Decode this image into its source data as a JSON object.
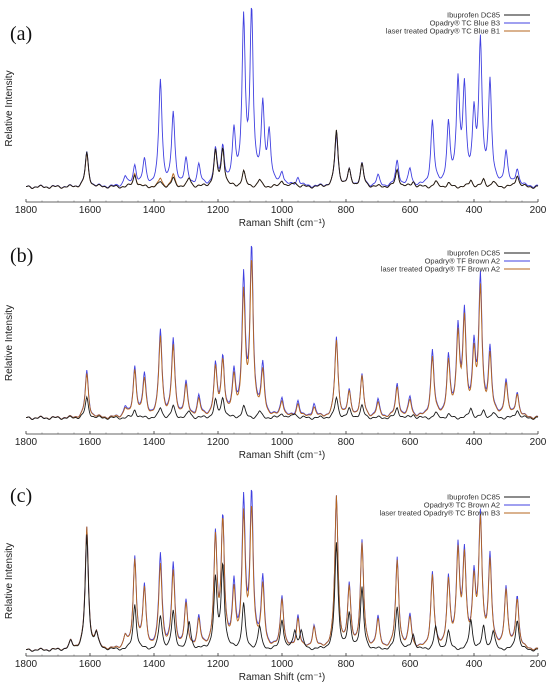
{
  "chart_data": [
    {
      "type": "line",
      "panel_label": "(a)",
      "xlabel": "Raman Shift (cm⁻¹)",
      "ylabel": "Relative Intensity",
      "xlim": [
        1800,
        200
      ],
      "x_reversed": true,
      "x_ticks": [
        "1800",
        "1600",
        "1400",
        "1200",
        "1000",
        "800",
        "600",
        "400",
        "200"
      ],
      "legend_position": "top-right",
      "colors": [
        "#1a1a1a",
        "#4040e0",
        "#b5651d"
      ],
      "series": [
        {
          "name": "Ibuprofen DC85",
          "peaks": [
            [
              1610,
              0.2
            ],
            [
              1460,
              0.07
            ],
            [
              1380,
              0.03
            ],
            [
              1340,
              0.05
            ],
            [
              1290,
              0.05
            ],
            [
              1208,
              0.2
            ],
            [
              1185,
              0.22
            ],
            [
              1120,
              0.09
            ],
            [
              1070,
              0.04
            ],
            [
              1000,
              0.04
            ],
            [
              960,
              0.03
            ],
            [
              830,
              0.33
            ],
            [
              790,
              0.09
            ],
            [
              750,
              0.13
            ],
            [
              640,
              0.1
            ],
            [
              590,
              0.03
            ],
            [
              520,
              0.03
            ],
            [
              480,
              0.02
            ],
            [
              410,
              0.04
            ],
            [
              370,
              0.04
            ],
            [
              340,
              0.03
            ],
            [
              265,
              0.07
            ]
          ]
        },
        {
          "name": "Opadry® TC Blue B3",
          "peaks": [
            [
              1610,
              0.2
            ],
            [
              1490,
              0.06
            ],
            [
              1460,
              0.12
            ],
            [
              1430,
              0.15
            ],
            [
              1380,
              0.62
            ],
            [
              1340,
              0.42
            ],
            [
              1300,
              0.15
            ],
            [
              1260,
              0.12
            ],
            [
              1208,
              0.2
            ],
            [
              1185,
              0.22
            ],
            [
              1150,
              0.3
            ],
            [
              1120,
              0.95
            ],
            [
              1095,
              1.0
            ],
            [
              1060,
              0.45
            ],
            [
              1040,
              0.3
            ],
            [
              1000,
              0.08
            ],
            [
              950,
              0.05
            ],
            [
              830,
              0.3
            ],
            [
              790,
              0.09
            ],
            [
              750,
              0.13
            ],
            [
              700,
              0.06
            ],
            [
              640,
              0.15
            ],
            [
              600,
              0.1
            ],
            [
              530,
              0.38
            ],
            [
              480,
              0.35
            ],
            [
              450,
              0.6
            ],
            [
              430,
              0.55
            ],
            [
              400,
              0.4
            ],
            [
              380,
              0.82
            ],
            [
              350,
              0.6
            ],
            [
              300,
              0.2
            ],
            [
              265,
              0.1
            ]
          ]
        },
        {
          "name": "laser treated Opadry® TC Blue B1",
          "peaks": [
            [
              1610,
              0.19
            ],
            [
              1460,
              0.08
            ],
            [
              1380,
              0.05
            ],
            [
              1340,
              0.07
            ],
            [
              1290,
              0.05
            ],
            [
              1208,
              0.2
            ],
            [
              1185,
              0.22
            ],
            [
              1120,
              0.09
            ],
            [
              1070,
              0.04
            ],
            [
              1000,
              0.04
            ],
            [
              960,
              0.03
            ],
            [
              830,
              0.33
            ],
            [
              790,
              0.09
            ],
            [
              750,
              0.13
            ],
            [
              640,
              0.1
            ],
            [
              590,
              0.03
            ],
            [
              520,
              0.03
            ],
            [
              480,
              0.02
            ],
            [
              410,
              0.04
            ],
            [
              370,
              0.04
            ],
            [
              340,
              0.03
            ],
            [
              265,
              0.07
            ]
          ]
        }
      ]
    },
    {
      "type": "line",
      "panel_label": "(b)",
      "xlabel": "Raman Shift (cm⁻¹)",
      "ylabel": "Relative Intensity",
      "xlim": [
        1800,
        200
      ],
      "x_reversed": true,
      "x_ticks": [
        "1800",
        "1600",
        "1400",
        "1200",
        "1000",
        "800",
        "600",
        "400",
        "200"
      ],
      "legend_position": "top-right",
      "colors": [
        "#1a1a1a",
        "#4040e0",
        "#b5651d"
      ],
      "series": [
        {
          "name": "Ibuprofen DC85",
          "peaks": [
            [
              1610,
              0.12
            ],
            [
              1460,
              0.05
            ],
            [
              1380,
              0.06
            ],
            [
              1340,
              0.07
            ],
            [
              1290,
              0.04
            ],
            [
              1208,
              0.1
            ],
            [
              1185,
              0.12
            ],
            [
              1120,
              0.07
            ],
            [
              1070,
              0.04
            ],
            [
              1000,
              0.03
            ],
            [
              960,
              0.03
            ],
            [
              830,
              0.12
            ],
            [
              790,
              0.05
            ],
            [
              750,
              0.07
            ],
            [
              640,
              0.06
            ],
            [
              590,
              0.02
            ],
            [
              520,
              0.03
            ],
            [
              480,
              0.02
            ],
            [
              410,
              0.06
            ],
            [
              370,
              0.04
            ],
            [
              340,
              0.03
            ],
            [
              265,
              0.05
            ]
          ]
        },
        {
          "name": "Opadry® TF Brown A2",
          "peaks": [
            [
              1610,
              0.28
            ],
            [
              1490,
              0.06
            ],
            [
              1460,
              0.3
            ],
            [
              1430,
              0.25
            ],
            [
              1380,
              0.52
            ],
            [
              1340,
              0.46
            ],
            [
              1300,
              0.2
            ],
            [
              1260,
              0.12
            ],
            [
              1208,
              0.3
            ],
            [
              1185,
              0.35
            ],
            [
              1150,
              0.25
            ],
            [
              1120,
              0.82
            ],
            [
              1095,
              1.0
            ],
            [
              1060,
              0.3
            ],
            [
              1000,
              0.12
            ],
            [
              950,
              0.1
            ],
            [
              900,
              0.08
            ],
            [
              830,
              0.48
            ],
            [
              790,
              0.15
            ],
            [
              750,
              0.25
            ],
            [
              700,
              0.1
            ],
            [
              640,
              0.2
            ],
            [
              600,
              0.12
            ],
            [
              530,
              0.4
            ],
            [
              480,
              0.35
            ],
            [
              450,
              0.52
            ],
            [
              430,
              0.6
            ],
            [
              400,
              0.4
            ],
            [
              380,
              0.82
            ],
            [
              350,
              0.4
            ],
            [
              300,
              0.22
            ],
            [
              265,
              0.15
            ]
          ]
        },
        {
          "name": "laser treated Opadry® TF Brown A2",
          "peaks": [
            [
              1610,
              0.26
            ],
            [
              1490,
              0.05
            ],
            [
              1460,
              0.28
            ],
            [
              1430,
              0.22
            ],
            [
              1380,
              0.48
            ],
            [
              1340,
              0.42
            ],
            [
              1300,
              0.18
            ],
            [
              1260,
              0.1
            ],
            [
              1208,
              0.28
            ],
            [
              1185,
              0.33
            ],
            [
              1150,
              0.22
            ],
            [
              1120,
              0.72
            ],
            [
              1095,
              0.92
            ],
            [
              1060,
              0.26
            ],
            [
              1000,
              0.1
            ],
            [
              950,
              0.08
            ],
            [
              900,
              0.06
            ],
            [
              830,
              0.46
            ],
            [
              790,
              0.14
            ],
            [
              750,
              0.24
            ],
            [
              700,
              0.08
            ],
            [
              640,
              0.18
            ],
            [
              600,
              0.1
            ],
            [
              530,
              0.36
            ],
            [
              480,
              0.32
            ],
            [
              450,
              0.48
            ],
            [
              430,
              0.56
            ],
            [
              400,
              0.36
            ],
            [
              380,
              0.75
            ],
            [
              350,
              0.36
            ],
            [
              300,
              0.2
            ],
            [
              265,
              0.14
            ]
          ]
        }
      ]
    },
    {
      "type": "line",
      "panel_label": "(c)",
      "xlabel": "Raman Shift (cm⁻¹)",
      "ylabel": "Relative Intensity",
      "xlim": [
        1800,
        200
      ],
      "x_reversed": true,
      "x_ticks": [
        "1800",
        "1600",
        "1400",
        "1200",
        "1000",
        "800",
        "600",
        "400",
        "200"
      ],
      "legend_position": "top-right",
      "colors": [
        "#1a1a1a",
        "#4040e0",
        "#b5651d"
      ],
      "series": [
        {
          "name": "Ibuprofen DC85",
          "peaks": [
            [
              1660,
              0.05
            ],
            [
              1610,
              0.75
            ],
            [
              1580,
              0.1
            ],
            [
              1460,
              0.3
            ],
            [
              1380,
              0.22
            ],
            [
              1340,
              0.25
            ],
            [
              1290,
              0.18
            ],
            [
              1208,
              0.45
            ],
            [
              1185,
              0.55
            ],
            [
              1120,
              0.3
            ],
            [
              1070,
              0.15
            ],
            [
              1000,
              0.2
            ],
            [
              960,
              0.12
            ],
            [
              940,
              0.12
            ],
            [
              830,
              0.7
            ],
            [
              790,
              0.22
            ],
            [
              750,
              0.4
            ],
            [
              640,
              0.28
            ],
            [
              590,
              0.1
            ],
            [
              520,
              0.15
            ],
            [
              480,
              0.12
            ],
            [
              410,
              0.2
            ],
            [
              370,
              0.15
            ],
            [
              340,
              0.12
            ],
            [
              265,
              0.2
            ]
          ]
        },
        {
          "name": "Opadry® TC Brown A2",
          "peaks": [
            [
              1660,
              0.05
            ],
            [
              1610,
              0.8
            ],
            [
              1580,
              0.1
            ],
            [
              1490,
              0.08
            ],
            [
              1460,
              0.6
            ],
            [
              1430,
              0.4
            ],
            [
              1380,
              0.62
            ],
            [
              1340,
              0.55
            ],
            [
              1300,
              0.3
            ],
            [
              1260,
              0.2
            ],
            [
              1208,
              0.72
            ],
            [
              1185,
              0.84
            ],
            [
              1150,
              0.4
            ],
            [
              1120,
              0.95
            ],
            [
              1095,
              1.0
            ],
            [
              1060,
              0.45
            ],
            [
              1000,
              0.35
            ],
            [
              950,
              0.22
            ],
            [
              900,
              0.15
            ],
            [
              830,
              1.0
            ],
            [
              790,
              0.4
            ],
            [
              750,
              0.7
            ],
            [
              700,
              0.2
            ],
            [
              640,
              0.6
            ],
            [
              600,
              0.22
            ],
            [
              530,
              0.5
            ],
            [
              480,
              0.45
            ],
            [
              450,
              0.65
            ],
            [
              430,
              0.6
            ],
            [
              400,
              0.45
            ],
            [
              380,
              0.85
            ],
            [
              350,
              0.6
            ],
            [
              300,
              0.4
            ],
            [
              265,
              0.35
            ]
          ]
        },
        {
          "name": "laser treated Opadry® TC Brown B3",
          "peaks": [
            [
              1660,
              0.05
            ],
            [
              1610,
              0.8
            ],
            [
              1580,
              0.1
            ],
            [
              1490,
              0.08
            ],
            [
              1460,
              0.58
            ],
            [
              1430,
              0.38
            ],
            [
              1380,
              0.55
            ],
            [
              1340,
              0.5
            ],
            [
              1300,
              0.28
            ],
            [
              1260,
              0.18
            ],
            [
              1208,
              0.7
            ],
            [
              1185,
              0.82
            ],
            [
              1150,
              0.35
            ],
            [
              1120,
              0.85
            ],
            [
              1095,
              0.9
            ],
            [
              1060,
              0.4
            ],
            [
              1000,
              0.33
            ],
            [
              950,
              0.2
            ],
            [
              900,
              0.14
            ],
            [
              830,
              1.0
            ],
            [
              790,
              0.38
            ],
            [
              750,
              0.68
            ],
            [
              700,
              0.18
            ],
            [
              640,
              0.58
            ],
            [
              600,
              0.2
            ],
            [
              530,
              0.48
            ],
            [
              480,
              0.43
            ],
            [
              450,
              0.62
            ],
            [
              430,
              0.57
            ],
            [
              400,
              0.42
            ],
            [
              380,
              0.82
            ],
            [
              350,
              0.56
            ],
            [
              300,
              0.38
            ],
            [
              265,
              0.33
            ]
          ]
        }
      ]
    }
  ]
}
